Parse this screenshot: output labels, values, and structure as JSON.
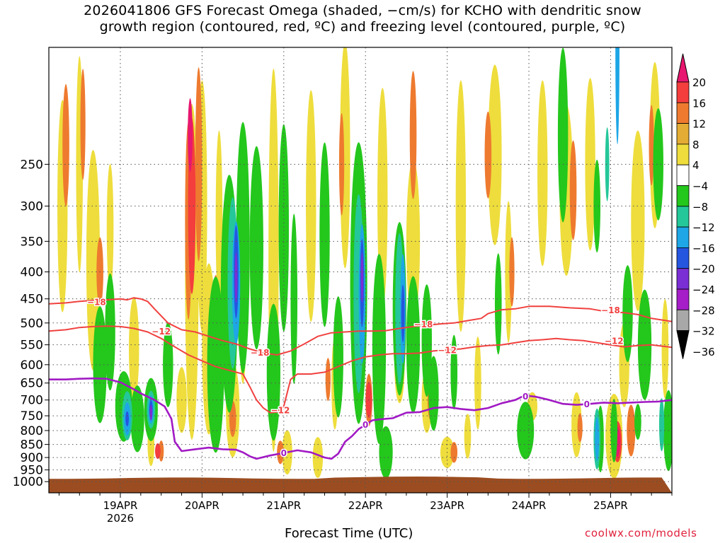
{
  "chart_data": {
    "type": "heatmap",
    "title": "2026041806 GFS Forecast Omega (shaded, −cm/s) for KCHO with dendritic snow\ngrowth region (contoured, red, ºC) and freezing level (contoured, purple, ºC)",
    "xlabel": "Forecast Time (UTC)",
    "ylabel": "",
    "credit": "coolwx.com/models",
    "x_range_hours": [
      -21,
      162
    ],
    "x_ticks": [
      {
        "hour": 0,
        "label": "19APR",
        "sublabel": "2026"
      },
      {
        "hour": 24,
        "label": "20APR"
      },
      {
        "hour": 48,
        "label": "21APR"
      },
      {
        "hour": 72,
        "label": "22APR"
      },
      {
        "hour": 96,
        "label": "23APR"
      },
      {
        "hour": 120,
        "label": "24APR"
      },
      {
        "hour": 144,
        "label": "25APR"
      }
    ],
    "y_range_hpa": [
      1050,
      150
    ],
    "y_scale": "log",
    "y_ticks": [
      250,
      300,
      350,
      400,
      450,
      500,
      550,
      600,
      650,
      700,
      750,
      800,
      850,
      900,
      950,
      1000
    ],
    "grid": true,
    "colorbar": {
      "labels": [
        "20",
        "16",
        "12",
        "8",
        "4",
        "−4",
        "−8",
        "−12",
        "−16",
        "−20",
        "−24",
        "−28",
        "−32",
        "−36"
      ],
      "colors": [
        "#e8176f",
        "#f43d3d",
        "#ee7a2f",
        "#e3ac34",
        "#eedd3c",
        "#ffffff",
        "#24c71c",
        "#24c79a",
        "#1ea6e6",
        "#2556e0",
        "#7a2fd4",
        "#a51ec8",
        "#a8a8a8",
        "#000000"
      ]
    },
    "contours": [
      {
        "label": "−18",
        "color": "#f0413f",
        "points": [
          [
            -21,
            460
          ],
          [
            -16,
            458
          ],
          [
            -12,
            455
          ],
          [
            -8,
            453
          ],
          [
            -4,
            452
          ],
          [
            0,
            450
          ],
          [
            2,
            452
          ],
          [
            4,
            448
          ],
          [
            6,
            450
          ],
          [
            8,
            455
          ],
          [
            10,
            470
          ],
          [
            14,
            500
          ],
          [
            18,
            515
          ],
          [
            22,
            520
          ],
          [
            26,
            530
          ],
          [
            30,
            540
          ],
          [
            34,
            548
          ],
          [
            38,
            560
          ],
          [
            42,
            570
          ],
          [
            46,
            575
          ],
          [
            50,
            565
          ],
          [
            54,
            548
          ],
          [
            58,
            530
          ],
          [
            62,
            522
          ],
          [
            66,
            520
          ],
          [
            70,
            518
          ],
          [
            74,
            518
          ],
          [
            78,
            517
          ],
          [
            82,
            512
          ],
          [
            86,
            508
          ],
          [
            90,
            505
          ],
          [
            94,
            502
          ],
          [
            98,
            500
          ],
          [
            102,
            495
          ],
          [
            106,
            490
          ],
          [
            108,
            480
          ],
          [
            112,
            472
          ],
          [
            116,
            470
          ],
          [
            120,
            465
          ],
          [
            126,
            465
          ],
          [
            132,
            468
          ],
          [
            138,
            470
          ],
          [
            142,
            475
          ],
          [
            148,
            478
          ],
          [
            152,
            482
          ],
          [
            156,
            490
          ],
          [
            162,
            497
          ]
        ],
        "label_positions": [
          [
            -7,
            455
          ],
          [
            41,
            568
          ],
          [
            89,
            502
          ],
          [
            144,
            472
          ]
        ]
      },
      {
        "label": "−12",
        "color": "#f0413f",
        "points": [
          [
            -21,
            518
          ],
          [
            -16,
            515
          ],
          [
            -12,
            510
          ],
          [
            -8,
            508
          ],
          [
            -4,
            507
          ],
          [
            0,
            508
          ],
          [
            4,
            512
          ],
          [
            8,
            520
          ],
          [
            12,
            535
          ],
          [
            16,
            555
          ],
          [
            20,
            575
          ],
          [
            24,
            590
          ],
          [
            28,
            605
          ],
          [
            32,
            615
          ],
          [
            36,
            625
          ],
          [
            38,
            660
          ],
          [
            40,
            700
          ],
          [
            42,
            725
          ],
          [
            44,
            740
          ],
          [
            46,
            738
          ],
          [
            48,
            720
          ],
          [
            50,
            640
          ],
          [
            52,
            625
          ],
          [
            56,
            625
          ],
          [
            60,
            620
          ],
          [
            64,
            605
          ],
          [
            68,
            590
          ],
          [
            72,
            580
          ],
          [
            76,
            575
          ],
          [
            80,
            572
          ],
          [
            84,
            572
          ],
          [
            88,
            570
          ],
          [
            92,
            565
          ],
          [
            96,
            562
          ],
          [
            100,
            560
          ],
          [
            104,
            555
          ],
          [
            108,
            552
          ],
          [
            112,
            550
          ],
          [
            116,
            545
          ],
          [
            120,
            540
          ],
          [
            124,
            538
          ],
          [
            128,
            535
          ],
          [
            132,
            538
          ],
          [
            136,
            540
          ],
          [
            140,
            545
          ],
          [
            144,
            550
          ],
          [
            148,
            555
          ],
          [
            152,
            552
          ],
          [
            156,
            550
          ],
          [
            162,
            556
          ]
        ],
        "label_positions": [
          [
            12,
            518
          ],
          [
            47,
            730
          ],
          [
            96,
            562
          ],
          [
            145,
            540
          ]
        ]
      },
      {
        "label": "0",
        "color": "#a11ac4",
        "points": [
          [
            -21,
            640
          ],
          [
            -16,
            640
          ],
          [
            -12,
            638
          ],
          [
            -8,
            637
          ],
          [
            -4,
            638
          ],
          [
            0,
            648
          ],
          [
            4,
            668
          ],
          [
            6,
            680
          ],
          [
            8,
            690
          ],
          [
            10,
            700
          ],
          [
            13,
            720
          ],
          [
            15,
            760
          ],
          [
            16,
            840
          ],
          [
            18,
            875
          ],
          [
            22,
            868
          ],
          [
            26,
            862
          ],
          [
            30,
            868
          ],
          [
            34,
            870
          ],
          [
            36,
            880
          ],
          [
            38,
            895
          ],
          [
            40,
            905
          ],
          [
            44,
            892
          ],
          [
            48,
            882
          ],
          [
            52,
            872
          ],
          [
            56,
            880
          ],
          [
            60,
            900
          ],
          [
            62,
            905
          ],
          [
            64,
            885
          ],
          [
            66,
            840
          ],
          [
            68,
            820
          ],
          [
            70,
            795
          ],
          [
            72,
            780
          ],
          [
            74,
            765
          ],
          [
            76,
            762
          ],
          [
            80,
            758
          ],
          [
            84,
            740
          ],
          [
            88,
            738
          ],
          [
            92,
            725
          ],
          [
            96,
            722
          ],
          [
            100,
            728
          ],
          [
            104,
            732
          ],
          [
            108,
            725
          ],
          [
            112,
            710
          ],
          [
            116,
            700
          ],
          [
            118,
            690
          ],
          [
            120,
            688
          ],
          [
            122,
            690
          ],
          [
            126,
            700
          ],
          [
            130,
            712
          ],
          [
            134,
            715
          ],
          [
            138,
            712
          ],
          [
            142,
            708
          ],
          [
            146,
            710
          ],
          [
            150,
            708
          ],
          [
            154,
            706
          ],
          [
            158,
            705
          ],
          [
            162,
            700
          ]
        ],
        "label_positions": [
          [
            48,
            880
          ],
          [
            72,
            778
          ],
          [
            119,
            688
          ],
          [
            137,
            712
          ]
        ]
      }
    ],
    "surface": {
      "label": "terrain",
      "color": "#9b4d21"
    }
  }
}
